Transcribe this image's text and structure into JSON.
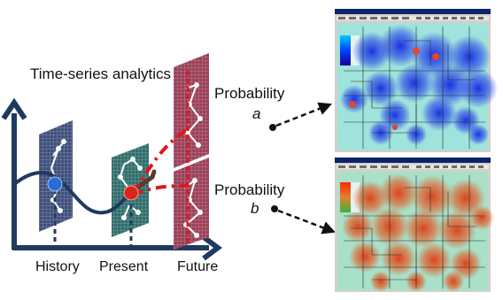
{
  "title": "Time-series analytics",
  "probability_a": {
    "label": "Probability",
    "letter": "a"
  },
  "probability_b": {
    "label": "Probability",
    "letter": "b"
  },
  "axis_labels": {
    "history": "History",
    "present": "Present",
    "future": "Future"
  },
  "colors": {
    "axis": "#1f3a5f",
    "curve": "#1f3a5f",
    "dashed_forecast": "#e0161c",
    "history_panel": "#3d4f7a",
    "present_panel": "#2f6d6a",
    "future_panel": "#9a3f57",
    "history_node": "#2b6bd6",
    "present_node": "#d8261c",
    "heatmap_a_blob": "#1d2fd8",
    "heatmap_b_blob": "#e24a1a",
    "heatmap_bg": "#9ee3dc"
  }
}
